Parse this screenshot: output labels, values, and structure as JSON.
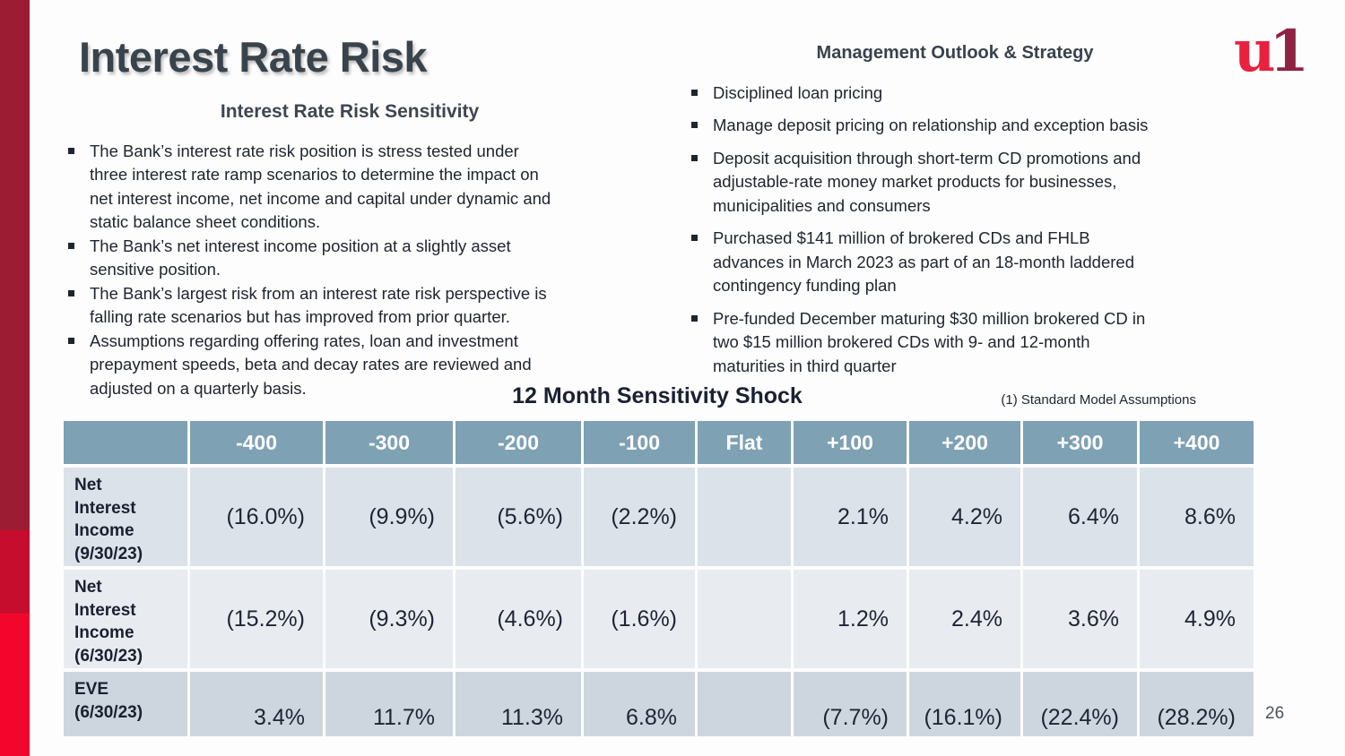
{
  "slide": {
    "title": "Interest Rate Risk",
    "page_number": "26"
  },
  "logo": {
    "u": "u",
    "one": "1"
  },
  "left_section": {
    "heading": "Interest Rate Risk Sensitivity",
    "bullets": [
      "The Bank’s interest rate risk position is stress tested under\nthree interest rate ramp scenarios to determine the impact on\nnet interest income, net income and capital under dynamic and\nstatic balance sheet conditions.",
      "The Bank’s net interest income position at a slightly asset\nsensitive position.",
      "The Bank’s largest risk from an interest rate risk perspective is\nfalling rate scenarios but has improved from prior quarter.",
      "Assumptions regarding offering rates, loan and investment\nprepayment speeds, beta and decay rates are reviewed and\nadjusted on a quarterly basis."
    ]
  },
  "right_section": {
    "heading": "Management Outlook & Strategy",
    "bullets": [
      "Disciplined loan pricing",
      "Manage deposit pricing on relationship and exception basis",
      "Deposit acquisition through short-term CD promotions and\nadjustable-rate money market products for businesses,\nmunicipalities and consumers",
      "Purchased $141 million of brokered CDs and FHLB\nadvances in March 2023 as part of an 18-month laddered\ncontingency funding plan",
      "Pre-funded December maturing $30 million brokered CD in\ntwo $15 million brokered CDs with 9- and 12-month\nmaturities in third quarter"
    ]
  },
  "table_section": {
    "title": "12 Month Sensitivity Shock",
    "note": "(1) Standard Model Assumptions"
  },
  "table": {
    "columns": [
      "",
      "-400",
      "-300",
      "-200",
      "-100",
      "Flat",
      "+100",
      "+200",
      "+300",
      "+400"
    ],
    "rows": [
      {
        "label": "Net\nInterest\nIncome\n(9/30/23)",
        "values": [
          "(16.0%)",
          "(9.9%)",
          "(5.6%)",
          "(2.2%)",
          "",
          "2.1%",
          "4.2%",
          "6.4%",
          "8.6%"
        ]
      },
      {
        "label": "Net\nInterest\nIncome\n(6/30/23)",
        "values": [
          "(15.2%)",
          "(9.3%)",
          "(4.6%)",
          "(1.6%)",
          "",
          "1.2%",
          "2.4%",
          "3.6%",
          "4.9%"
        ]
      },
      {
        "label": "EVE\n(6/30/23)",
        "values": [
          "3.4%",
          "11.7%",
          "11.3%",
          "6.8%",
          "",
          "(7.7%)",
          "(16.1%)",
          "(22.4%)",
          "(28.2%)"
        ]
      }
    ]
  },
  "colors": {
    "accent_bar_dark": "#9B1C33",
    "accent_bar_mid": "#C60D2E",
    "accent_bar_bright": "#F2062C",
    "table_header_bg": "#7EA1B4",
    "row_bg_1": "#DBE2E9",
    "row_bg_2": "#E8ECF0",
    "row_bg_3": "#CDD6DE",
    "logo_u": "#E8223E",
    "logo_one": "#8F2342"
  }
}
